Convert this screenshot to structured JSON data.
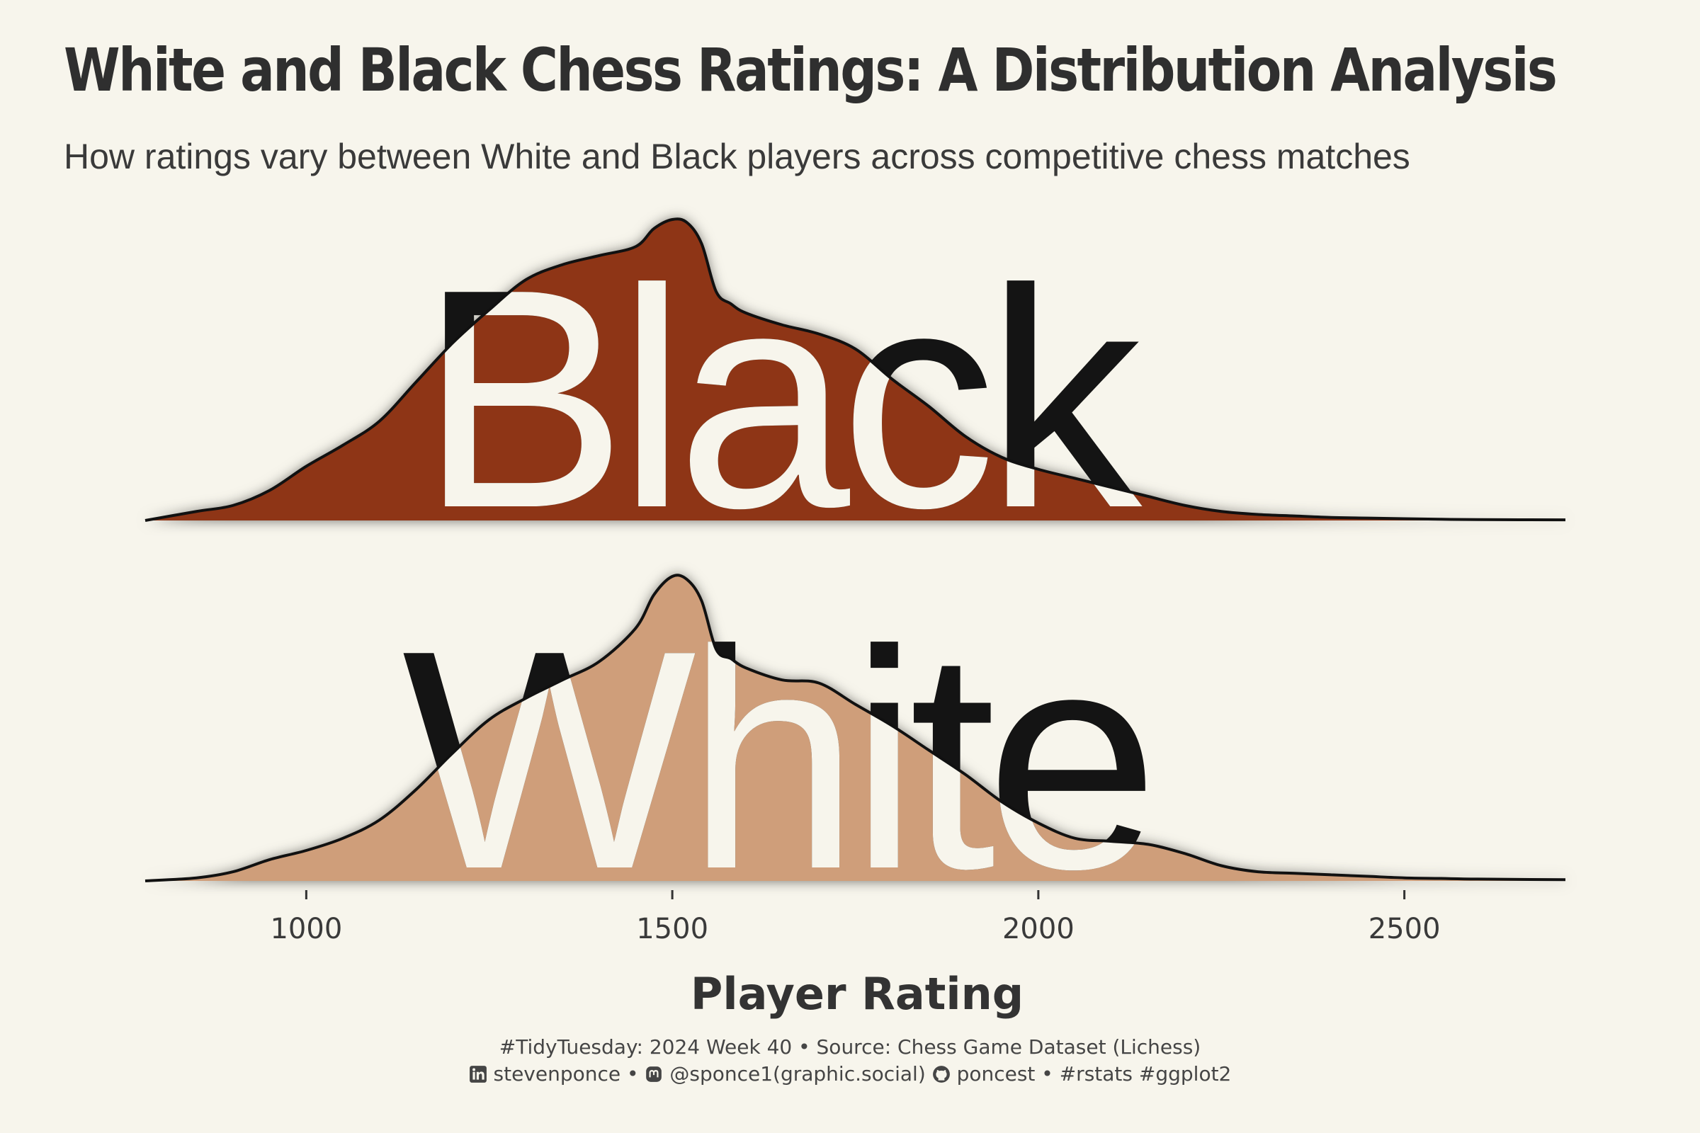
{
  "title": "White and Black Chess Ratings: A Distribution Analysis",
  "subtitle": "How ratings vary between White and Black players across competitive chess matches",
  "colors": {
    "background": "#f7f5ec",
    "black_fill": "#8e3517",
    "white_fill": "#cf9e7a",
    "outline": "#111111",
    "text": "#2b2b2b"
  },
  "chart_data": {
    "type": "area",
    "xlabel": "Player Rating",
    "ylabel": "",
    "xlim": [
      780,
      2720
    ],
    "x_ticks": [
      1000,
      1500,
      2000,
      2500
    ],
    "x_tick_labels": [
      "1000",
      "1500",
      "2000",
      "2500"
    ],
    "grid": false,
    "series": [
      {
        "name": "Black",
        "points": [
          [
            780,
            0.0
          ],
          [
            850,
            0.03
          ],
          [
            900,
            0.05
          ],
          [
            950,
            0.1
          ],
          [
            1000,
            0.18
          ],
          [
            1050,
            0.25
          ],
          [
            1100,
            0.33
          ],
          [
            1150,
            0.46
          ],
          [
            1200,
            0.59
          ],
          [
            1250,
            0.7
          ],
          [
            1300,
            0.8
          ],
          [
            1350,
            0.85
          ],
          [
            1400,
            0.88
          ],
          [
            1450,
            0.91
          ],
          [
            1475,
            0.97
          ],
          [
            1500,
            1.0
          ],
          [
            1520,
            0.99
          ],
          [
            1540,
            0.92
          ],
          [
            1560,
            0.76
          ],
          [
            1580,
            0.72
          ],
          [
            1600,
            0.69
          ],
          [
            1650,
            0.65
          ],
          [
            1700,
            0.62
          ],
          [
            1750,
            0.57
          ],
          [
            1800,
            0.47
          ],
          [
            1850,
            0.38
          ],
          [
            1900,
            0.28
          ],
          [
            1950,
            0.21
          ],
          [
            2000,
            0.17
          ],
          [
            2050,
            0.14
          ],
          [
            2100,
            0.11
          ],
          [
            2150,
            0.08
          ],
          [
            2200,
            0.05
          ],
          [
            2250,
            0.03
          ],
          [
            2300,
            0.02
          ],
          [
            2350,
            0.015
          ],
          [
            2400,
            0.01
          ],
          [
            2450,
            0.008
          ],
          [
            2500,
            0.006
          ],
          [
            2550,
            0.004
          ],
          [
            2600,
            0.003
          ],
          [
            2720,
            0.002
          ]
        ]
      },
      {
        "name": "White",
        "points": [
          [
            780,
            0.0
          ],
          [
            850,
            0.01
          ],
          [
            900,
            0.03
          ],
          [
            950,
            0.07
          ],
          [
            1000,
            0.1
          ],
          [
            1050,
            0.14
          ],
          [
            1100,
            0.2
          ],
          [
            1150,
            0.3
          ],
          [
            1200,
            0.42
          ],
          [
            1250,
            0.53
          ],
          [
            1300,
            0.6
          ],
          [
            1350,
            0.66
          ],
          [
            1400,
            0.72
          ],
          [
            1450,
            0.83
          ],
          [
            1475,
            0.94
          ],
          [
            1500,
            1.0
          ],
          [
            1520,
            0.99
          ],
          [
            1540,
            0.92
          ],
          [
            1560,
            0.76
          ],
          [
            1580,
            0.73
          ],
          [
            1600,
            0.7
          ],
          [
            1650,
            0.66
          ],
          [
            1700,
            0.65
          ],
          [
            1750,
            0.58
          ],
          [
            1800,
            0.51
          ],
          [
            1850,
            0.43
          ],
          [
            1900,
            0.35
          ],
          [
            1950,
            0.26
          ],
          [
            2000,
            0.19
          ],
          [
            2050,
            0.14
          ],
          [
            2100,
            0.13
          ],
          [
            2150,
            0.12
          ],
          [
            2200,
            0.09
          ],
          [
            2250,
            0.05
          ],
          [
            2300,
            0.03
          ],
          [
            2350,
            0.025
          ],
          [
            2400,
            0.02
          ],
          [
            2450,
            0.015
          ],
          [
            2500,
            0.01
          ],
          [
            2550,
            0.008
          ],
          [
            2600,
            0.006
          ],
          [
            2720,
            0.004
          ]
        ]
      }
    ]
  },
  "panels": {
    "black_label": "Black",
    "white_label": "White"
  },
  "caption": {
    "line1": "#TidyTuesday: 2024 Week 40 • Source: Chess Game Dataset (Lichess)",
    "linkedin_icon": "linkedin-icon",
    "linkedin": "stevenponce •",
    "mastodon_icon": "mastodon-icon",
    "mastodon": "@sponce1(graphic.social)",
    "github_icon": "github-icon",
    "github": "poncest • #rstats #ggplot2"
  }
}
